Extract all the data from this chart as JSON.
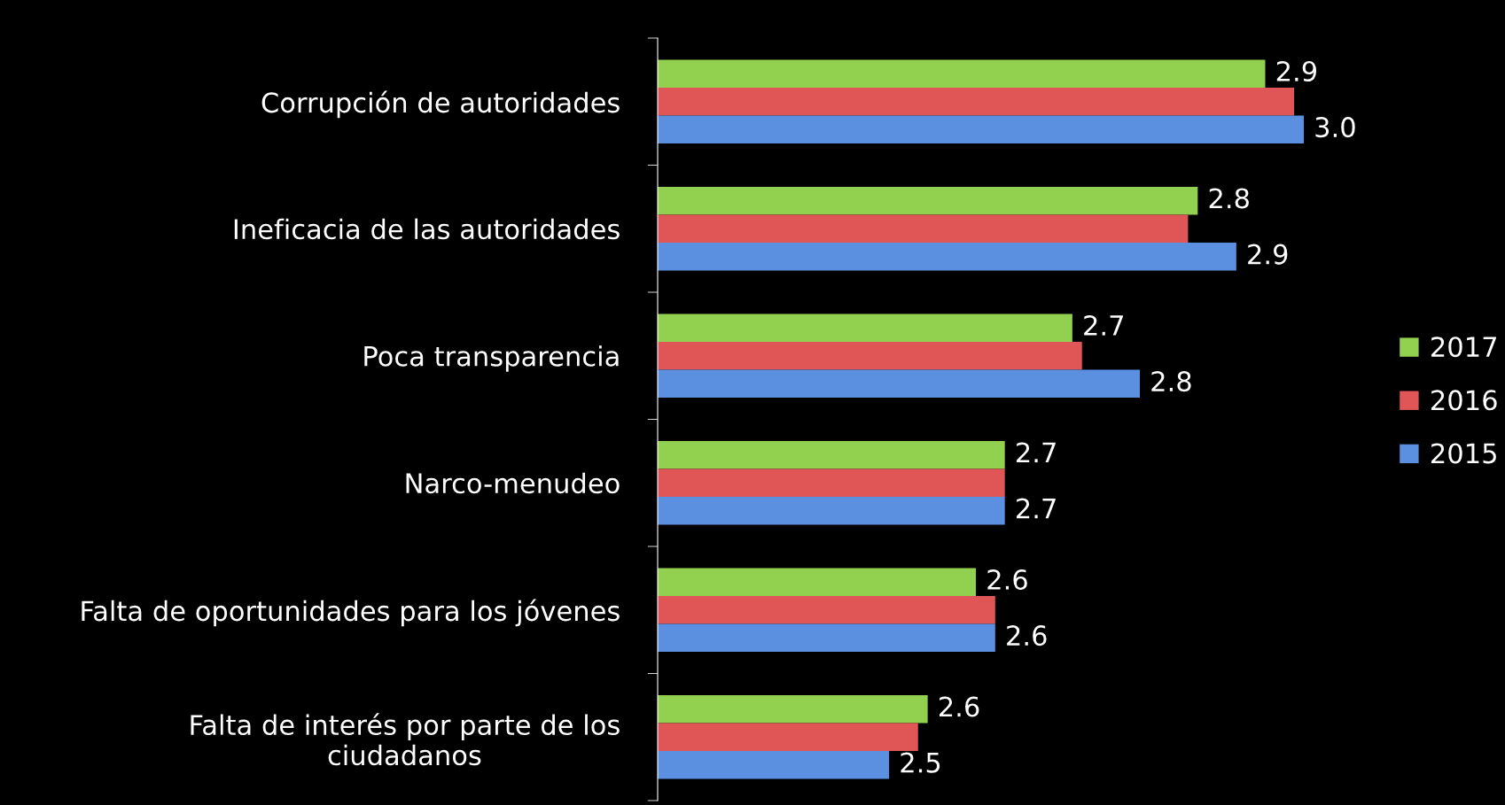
{
  "chart_data": {
    "type": "bar",
    "orientation": "horizontal",
    "categories": [
      "Corrupción de autoridades",
      "Ineficacia de las autoridades",
      "Poca transparencia",
      "Narco-menudeo",
      "Falta de oportunidades para los jóvenes",
      "Falta de interés por parte de los\nciudadanos"
    ],
    "series": [
      {
        "name": "2017",
        "color": "#92d050",
        "values": [
          2.92,
          2.85,
          2.72,
          2.65,
          2.62,
          2.57
        ],
        "value_labels": [
          "2.9",
          "2.8",
          "2.7",
          "2.7",
          "2.6",
          "2.6"
        ]
      },
      {
        "name": "2016",
        "color": "#e05555",
        "values": [
          2.95,
          2.84,
          2.73,
          2.65,
          2.64,
          2.56
        ],
        "value_labels": [
          null,
          null,
          null,
          null,
          null,
          null
        ]
      },
      {
        "name": "2015",
        "color": "#5b8fe0",
        "values": [
          2.96,
          2.89,
          2.79,
          2.65,
          2.64,
          2.53
        ],
        "value_labels": [
          "3.0",
          "2.9",
          "2.8",
          "2.7",
          "2.6",
          "2.5"
        ]
      }
    ],
    "xlim": [
      2.29,
      2.96
    ],
    "tick_labels": "y",
    "legend": "right",
    "grid": false
  }
}
